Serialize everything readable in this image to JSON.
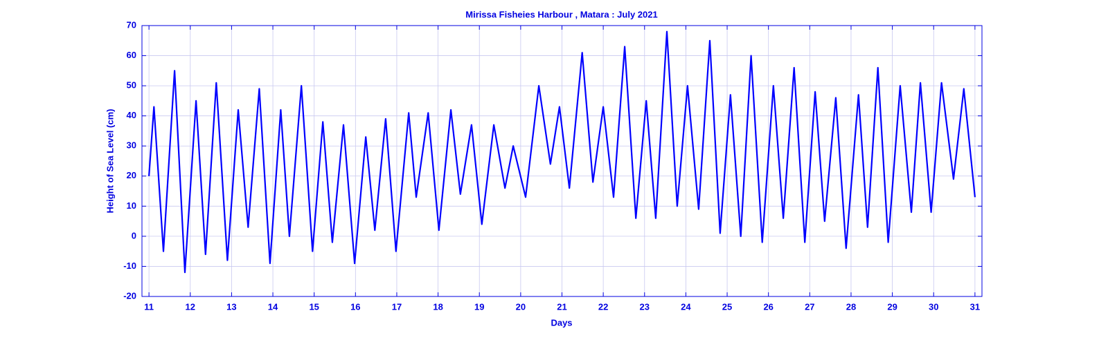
{
  "chart_data": {
    "type": "line",
    "title": "Mirissa  Fisheies Harbour , Matara : July 2021",
    "xlabel": "Days",
    "ylabel": "Height of Sea Level (cm)",
    "xlim": [
      10.83,
      31.17
    ],
    "ylim": [
      -20,
      70
    ],
    "xticks": [
      11,
      12,
      13,
      14,
      15,
      16,
      17,
      18,
      19,
      20,
      21,
      22,
      23,
      24,
      25,
      26,
      27,
      28,
      29,
      30,
      31
    ],
    "yticks": [
      -20,
      -10,
      0,
      10,
      20,
      30,
      40,
      50,
      60,
      70
    ],
    "grid": true,
    "series": [
      {
        "name": "Sea Level",
        "color": "#0000ff",
        "x": [
          11.0,
          11.12,
          11.35,
          11.62,
          11.87,
          12.14,
          12.37,
          12.63,
          12.9,
          13.16,
          13.4,
          13.67,
          13.93,
          14.19,
          14.4,
          14.69,
          14.96,
          15.21,
          15.44,
          15.71,
          15.98,
          16.25,
          16.47,
          16.73,
          16.98,
          17.29,
          17.47,
          17.76,
          18.02,
          18.31,
          18.54,
          18.81,
          19.06,
          19.35,
          19.62,
          19.82,
          20.12,
          20.44,
          20.72,
          20.94,
          21.18,
          21.49,
          21.75,
          22.0,
          22.25,
          22.52,
          22.79,
          23.04,
          23.27,
          23.54,
          23.79,
          24.04,
          24.31,
          24.58,
          24.83,
          25.08,
          25.33,
          25.58,
          25.85,
          26.12,
          26.36,
          26.62,
          26.88,
          27.13,
          27.36,
          27.63,
          27.88,
          28.18,
          28.4,
          28.65,
          28.9,
          29.19,
          29.46,
          29.68,
          29.94,
          30.19,
          30.48,
          30.73,
          31.0
        ],
        "values": [
          20,
          43,
          -5,
          55,
          -12,
          45,
          -6,
          51,
          -8,
          42,
          3,
          49,
          -9,
          42,
          0,
          50,
          -5,
          38,
          -2,
          37,
          -9,
          33,
          2,
          39,
          -5,
          41,
          13,
          41,
          2,
          42,
          14,
          37,
          4,
          37,
          16,
          30,
          13,
          50,
          24,
          43,
          16,
          61,
          18,
          43,
          13,
          63,
          6,
          45,
          6,
          68,
          10,
          50,
          9,
          65,
          1,
          47,
          0,
          60,
          -2,
          50,
          6,
          56,
          -2,
          48,
          5,
          46,
          -4,
          47,
          3,
          56,
          -2,
          50,
          8,
          51,
          8,
          51,
          19,
          49,
          13
        ]
      }
    ]
  }
}
